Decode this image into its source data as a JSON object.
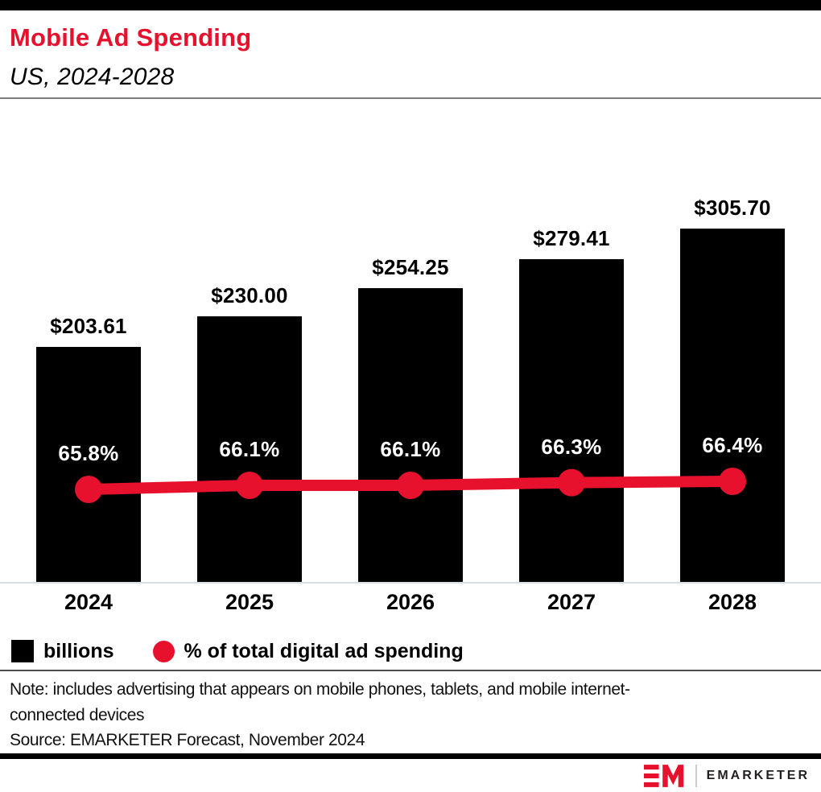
{
  "header": {
    "title": "Mobile Ad Spending",
    "subtitle": "US, 2024-2028"
  },
  "chart_data": {
    "type": "bar",
    "categories": [
      "2024",
      "2025",
      "2026",
      "2027",
      "2028"
    ],
    "series": [
      {
        "name": "billions",
        "type": "bar",
        "unit": "US$ billions",
        "values": [
          203.61,
          230.0,
          254.25,
          279.41,
          305.7
        ],
        "labels": [
          "$203.61",
          "$230.00",
          "$254.25",
          "$279.41",
          "$305.70"
        ],
        "color": "#000000"
      },
      {
        "name": "% of total digital ad spending",
        "type": "line",
        "unit": "%",
        "values": [
          65.8,
          66.1,
          66.1,
          66.3,
          66.4
        ],
        "labels": [
          "65.8%",
          "66.1%",
          "66.1%",
          "66.3%",
          "66.4%"
        ],
        "color": "#e8112d"
      }
    ],
    "title": "Mobile Ad Spending",
    "subtitle": "US, 2024-2028",
    "xlabel": "",
    "ylabel": "",
    "grid": false,
    "legend_position": "bottom"
  },
  "legend": {
    "items": [
      {
        "label": "billions",
        "swatch": "square",
        "color": "#000000"
      },
      {
        "label": "% of total digital ad spending",
        "swatch": "circle",
        "color": "#e8112d"
      }
    ]
  },
  "footer": {
    "note": "Note: includes advertising that appears on mobile phones, tablets, and mobile internet-connected devices",
    "source": "Source: EMARKETER Forecast, November 2024",
    "brand_name": "EMARKETER"
  },
  "colors": {
    "accent_red": "#e8112d",
    "bar_black": "#000000",
    "axis_line": "#d9dde9"
  }
}
